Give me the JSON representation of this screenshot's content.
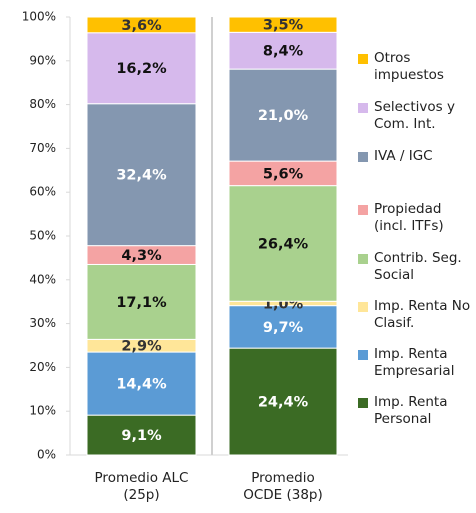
{
  "chart_data": {
    "type": "stacked_bar",
    "categories": [
      "Promedio ALC (25p)",
      "Promedio OCDE (38p)"
    ],
    "ylim": [
      0,
      100
    ],
    "yticks": [
      {
        "value": 0,
        "label": "0%"
      },
      {
        "value": 10,
        "label": "10%"
      },
      {
        "value": 20,
        "label": "20%"
      },
      {
        "value": 30,
        "label": "30%"
      },
      {
        "value": 40,
        "label": "40%"
      },
      {
        "value": 50,
        "label": "50%"
      },
      {
        "value": 60,
        "label": "60%"
      },
      {
        "value": 70,
        "label": "70%"
      },
      {
        "value": 80,
        "label": "80%"
      },
      {
        "value": 90,
        "label": "90%"
      },
      {
        "value": 100,
        "label": "100%"
      }
    ],
    "legend": "right",
    "series": [
      {
        "name": "Imp. Renta Personal",
        "color": "#3b6b24",
        "label_color": "#ffffff",
        "values": [
          9.1,
          24.4
        ],
        "value_labels": [
          "9,1%",
          "24,4%"
        ]
      },
      {
        "name": "Imp. Renta Empresarial",
        "color": "#5b9bd5",
        "label_color": "#ffffff",
        "values": [
          14.4,
          9.7
        ],
        "value_labels": [
          "14,4%",
          "9,7%"
        ]
      },
      {
        "name": "Imp. Renta No Clasif.",
        "color": "#ffe699",
        "label_color": "#333333",
        "values": [
          2.9,
          1.0
        ],
        "value_labels": [
          "2,9%",
          "1,0%"
        ]
      },
      {
        "name": "Contrib. Seg. Social",
        "color": "#a9d18e",
        "label_color": "#111111",
        "values": [
          17.1,
          26.4
        ],
        "value_labels": [
          "17,1%",
          "26,4%"
        ]
      },
      {
        "name": "Propiedad (incl. ITFs)",
        "color": "#f4a3a3",
        "label_color": "#111111",
        "values": [
          4.3,
          5.6
        ],
        "value_labels": [
          "4,3%",
          "5,6%"
        ]
      },
      {
        "name": "IVA / IGC",
        "color": "#8497b0",
        "label_color": "#ffffff",
        "values": [
          32.4,
          21.0
        ],
        "value_labels": [
          "32,4%",
          "21,0%"
        ]
      },
      {
        "name": "Selectivos y Com. Int.",
        "color": "#d6b9ec",
        "label_color": "#111111",
        "values": [
          16.2,
          8.4
        ],
        "value_labels": [
          "16,2%",
          "8,4%"
        ]
      },
      {
        "name": "Otros impuestos",
        "color": "#ffc000",
        "label_color": "#333333",
        "values": [
          3.6,
          3.5
        ],
        "value_labels": [
          "3,6%",
          "3,5%"
        ]
      }
    ]
  }
}
